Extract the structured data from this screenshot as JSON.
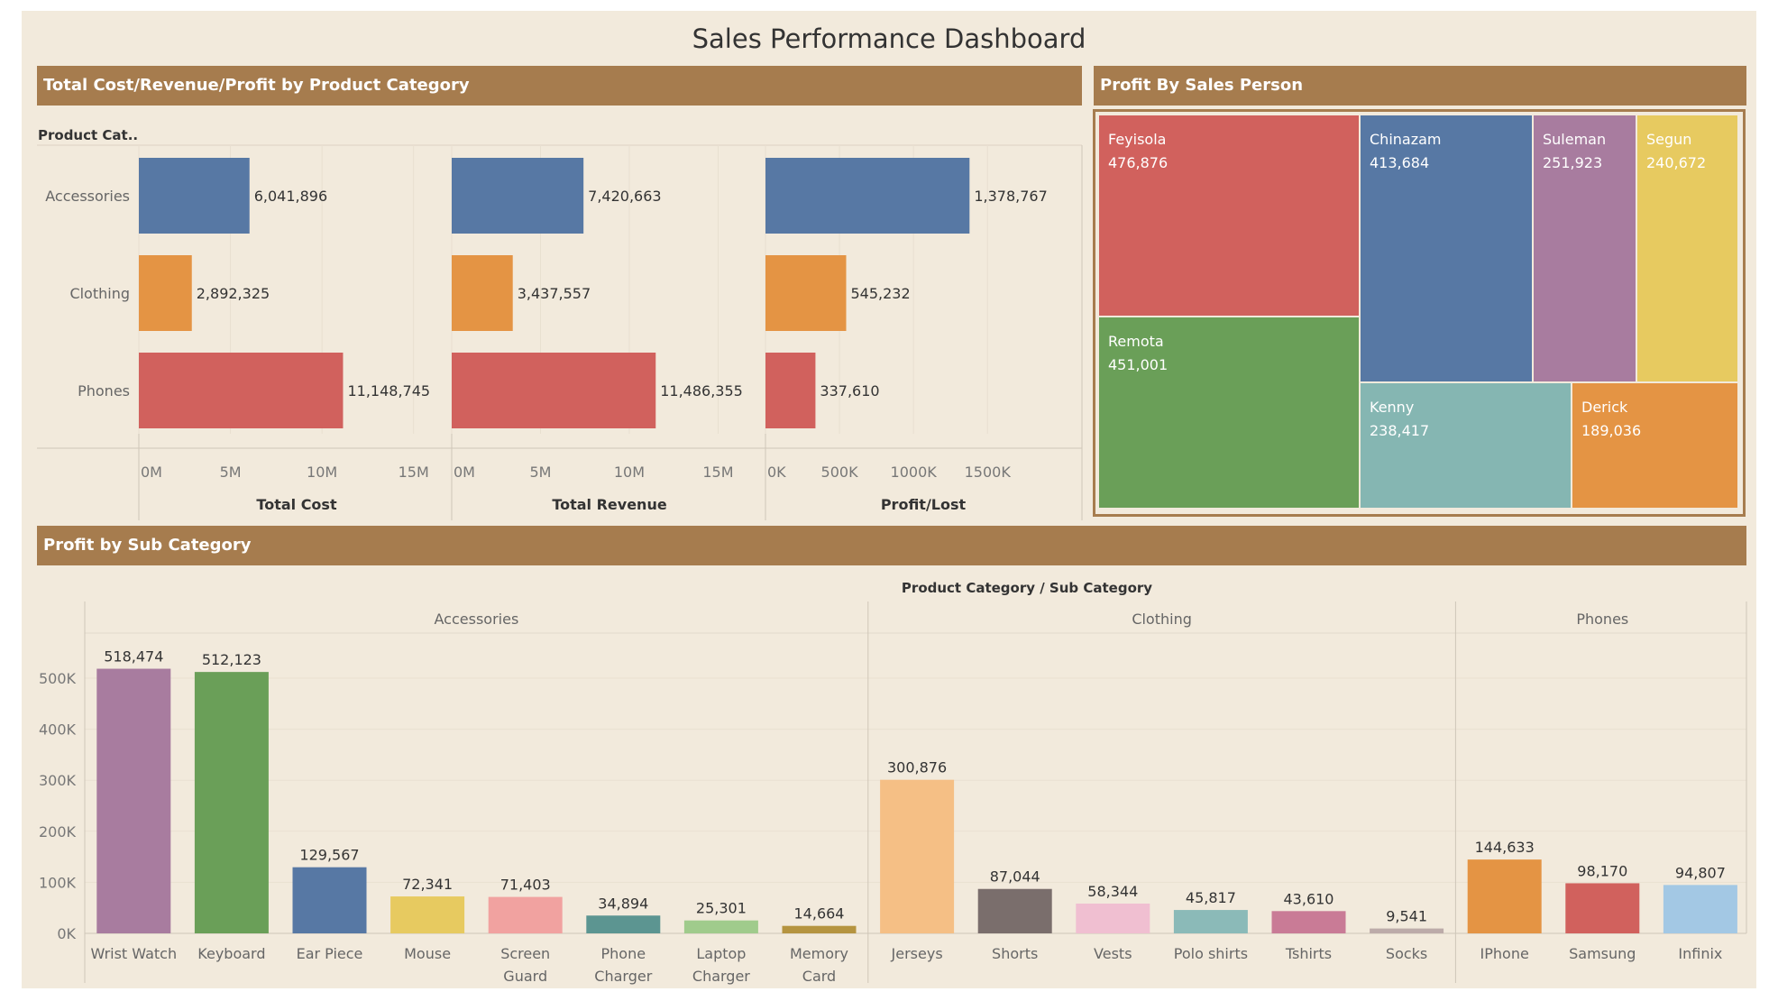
{
  "title": "Sales Performance Dashboard",
  "sections": {
    "category_title": "Total Cost/Revenue/Profit by Product Category",
    "salesperson_title": "Profit By Sales Person",
    "subcategory_title": "Profit by Sub Category"
  },
  "colors": {
    "header": "#a67c4e",
    "background": "#f2eadc",
    "accessories": "#5778a4",
    "clothing": "#e49444",
    "phones": "#d1615d"
  },
  "chart_data": [
    {
      "type": "bar",
      "orientation": "horizontal",
      "row_header": "Product Cat..",
      "categories": [
        "Accessories",
        "Clothing",
        "Phones"
      ],
      "panels": [
        {
          "xlabel": "Total Cost",
          "values": [
            6041896,
            2892325,
            11148745
          ],
          "labels": [
            "6,041,896",
            "2,892,325",
            "11,148,745"
          ],
          "ticks": [
            "0M",
            "5M",
            "10M",
            "15M"
          ],
          "xlim": [
            0,
            16000000
          ]
        },
        {
          "xlabel": "Total Revenue",
          "values": [
            7420663,
            3437557,
            11486355
          ],
          "labels": [
            "7,420,663",
            "3,437,557",
            "11,486,355"
          ],
          "ticks": [
            "0M",
            "5M",
            "10M",
            "15M"
          ],
          "xlim": [
            0,
            16500000
          ]
        },
        {
          "xlabel": "Profit/Lost",
          "values": [
            1378767,
            545232,
            337610
          ],
          "labels": [
            "1,378,767",
            "545,232",
            "337,610"
          ],
          "ticks": [
            "0K",
            "500K",
            "1000K",
            "1500K"
          ],
          "xlim": [
            0,
            1980000
          ]
        }
      ]
    },
    {
      "type": "treemap",
      "items": [
        {
          "name": "Feyisola",
          "value": "476,876",
          "color": "#d1615d"
        },
        {
          "name": "Remota",
          "value": "451,001",
          "color": "#6a9f58"
        },
        {
          "name": "Chinazam",
          "value": "413,684",
          "color": "#5778a4"
        },
        {
          "name": "Suleman",
          "value": "251,923",
          "color": "#a87c9f"
        },
        {
          "name": "Segun",
          "value": "240,672",
          "color": "#e7ca60"
        },
        {
          "name": "Kenny",
          "value": "238,417",
          "color": "#85b6b2"
        },
        {
          "name": "Derick",
          "value": "189,036",
          "color": "#e49444"
        }
      ]
    },
    {
      "type": "bar",
      "title": "Product Category / Sub Category",
      "y_ticks": [
        "0K",
        "100K",
        "200K",
        "300K",
        "400K",
        "500K"
      ],
      "ylim": [
        0,
        520000
      ],
      "groups": [
        {
          "name": "Accessories",
          "items": [
            {
              "name": [
                "Wrist Watch"
              ],
              "value": 518474,
              "label": "518,474",
              "color": "#a87c9f"
            },
            {
              "name": [
                "Keyboard"
              ],
              "value": 512123,
              "label": "512,123",
              "color": "#6a9f58"
            },
            {
              "name": [
                "Ear Piece"
              ],
              "value": 129567,
              "label": "129,567",
              "color": "#5778a4"
            },
            {
              "name": [
                "Mouse"
              ],
              "value": 72341,
              "label": "72,341",
              "color": "#e7ca60"
            },
            {
              "name": [
                "Screen",
                "Guard"
              ],
              "value": 71403,
              "label": "71,403",
              "color": "#f1a2a0"
            },
            {
              "name": [
                "Phone",
                "Charger"
              ],
              "value": 34894,
              "label": "34,894",
              "color": "#5c9591"
            },
            {
              "name": [
                "Laptop",
                "Charger"
              ],
              "value": 25301,
              "label": "25,301",
              "color": "#a0cb8c"
            },
            {
              "name": [
                "Memory",
                "Card"
              ],
              "value": 14664,
              "label": "14,664",
              "color": "#b59440"
            }
          ]
        },
        {
          "name": "Clothing",
          "items": [
            {
              "name": [
                "Jerseys"
              ],
              "value": 300876,
              "label": "300,876",
              "color": "#f5bf85"
            },
            {
              "name": [
                "Shorts"
              ],
              "value": 87044,
              "label": "87,044",
              "color": "#7a6e6c"
            },
            {
              "name": [
                "Vests"
              ],
              "value": 58344,
              "label": "58,344",
              "color": "#f0bfd1"
            },
            {
              "name": [
                "Polo shirts"
              ],
              "value": 45817,
              "label": "45,817",
              "color": "#8bbab8"
            },
            {
              "name": [
                "Tshirts"
              ],
              "value": 43610,
              "label": "43,610",
              "color": "#c97b96"
            },
            {
              "name": [
                "Socks"
              ],
              "value": 9541,
              "label": "9,541",
              "color": "#bcaba9"
            }
          ]
        },
        {
          "name": "Phones",
          "items": [
            {
              "name": [
                "IPhone"
              ],
              "value": 144633,
              "label": "144,633",
              "color": "#e49444"
            },
            {
              "name": [
                "Samsung"
              ],
              "value": 98170,
              "label": "98,170",
              "color": "#d1615d"
            },
            {
              "name": [
                "Infinix"
              ],
              "value": 94807,
              "label": "94,807",
              "color": "#a3c8e4"
            }
          ]
        }
      ]
    }
  ]
}
